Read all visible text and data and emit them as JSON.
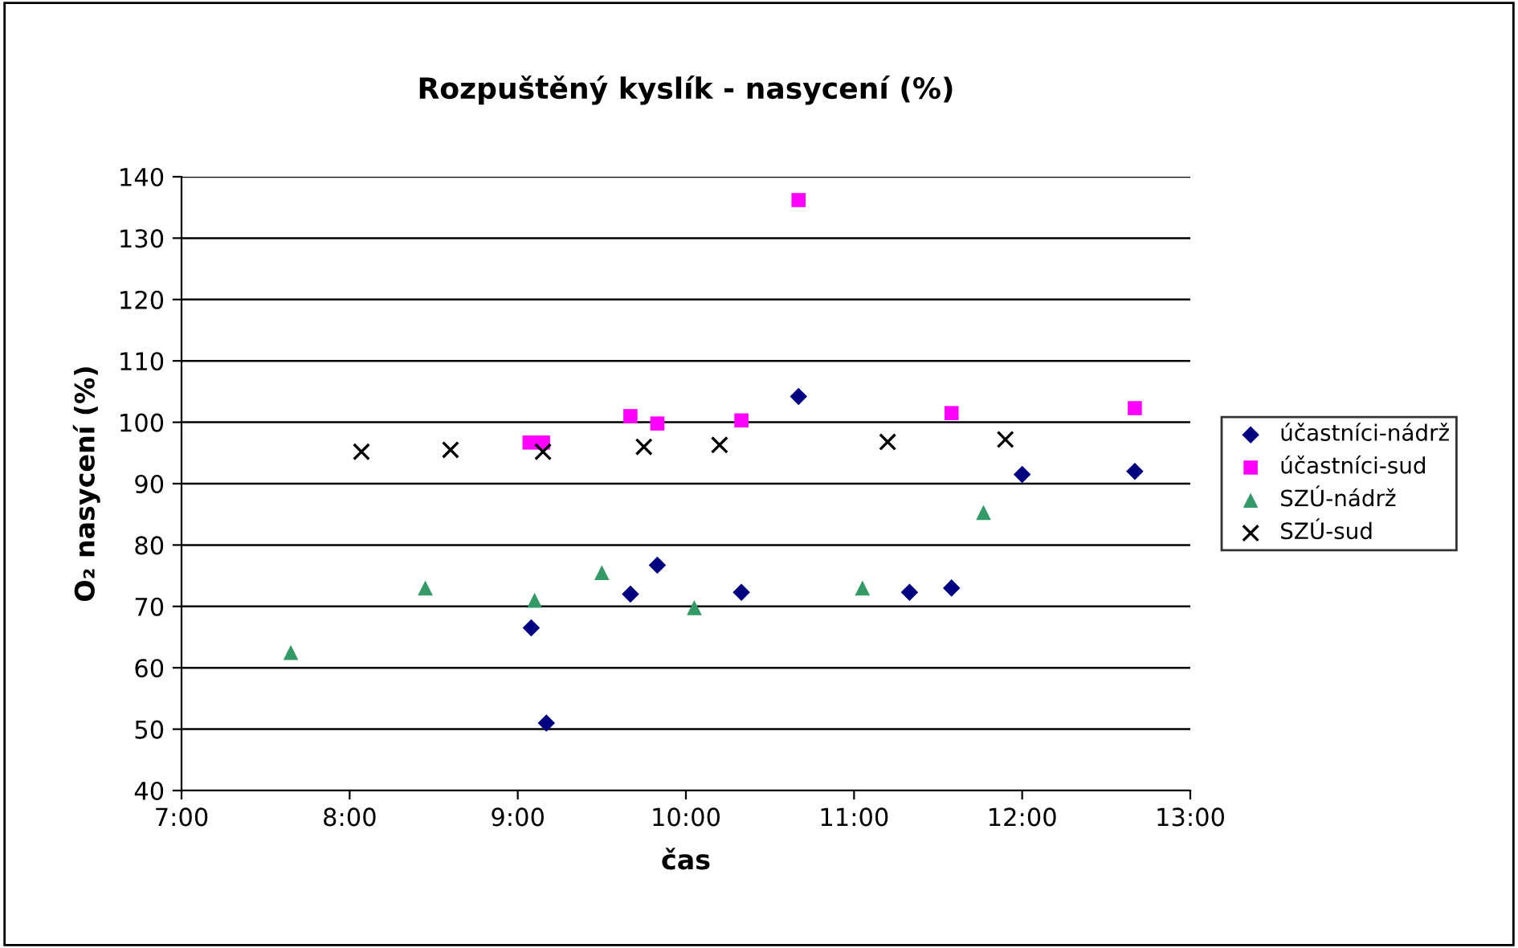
{
  "chart_data": {
    "type": "scatter",
    "title": "Rozpuštěný kyslík - nasycení (%)",
    "xlabel": "čas",
    "ylabel": "O₂ nasycení (%)",
    "xlim": [
      7,
      13
    ],
    "xticks": [
      {
        "value": 7,
        "label": "7:00"
      },
      {
        "value": 8,
        "label": "8:00"
      },
      {
        "value": 9,
        "label": "9:00"
      },
      {
        "value": 10,
        "label": "10:00"
      },
      {
        "value": 11,
        "label": "11:00"
      },
      {
        "value": 12,
        "label": "12:00"
      },
      {
        "value": 13,
        "label": "13:00"
      }
    ],
    "ylim": [
      40,
      140
    ],
    "yticks": [
      40,
      50,
      60,
      70,
      80,
      90,
      100,
      110,
      120,
      130,
      140
    ],
    "grid": "y",
    "legend": "right",
    "series": [
      {
        "name": "účastníci-nádrž",
        "color": "#000080",
        "marker": "diamond",
        "x": [
          9.08,
          9.17,
          9.67,
          9.83,
          10.33,
          10.67,
          11.33,
          11.58,
          12.0,
          12.67
        ],
        "values": [
          66.5,
          51,
          72,
          76.7,
          72.3,
          104.2,
          72.3,
          73,
          91.5,
          92
        ]
      },
      {
        "name": "účastníci-sud",
        "color": "#ff00ff",
        "marker": "square",
        "x": [
          9.07,
          9.15,
          9.67,
          9.83,
          10.33,
          10.67,
          11.58,
          12.67
        ],
        "values": [
          96.7,
          96.7,
          101,
          99.8,
          100.3,
          136.2,
          101.5,
          102.3
        ]
      },
      {
        "name": "SZÚ-nádrž",
        "color": "#339966",
        "marker": "triangle",
        "x": [
          7.65,
          8.45,
          9.1,
          9.5,
          10.05,
          11.05,
          11.77
        ],
        "values": [
          62.5,
          73,
          71,
          75.5,
          69.8,
          73,
          85.3
        ]
      },
      {
        "name": "SZÚ-sud",
        "color": "#000000",
        "marker": "cross",
        "x": [
          8.07,
          8.6,
          9.15,
          9.75,
          10.2,
          11.2,
          11.9
        ],
        "values": [
          95.2,
          95.5,
          95.2,
          96,
          96.3,
          96.8,
          97.2
        ]
      }
    ]
  }
}
